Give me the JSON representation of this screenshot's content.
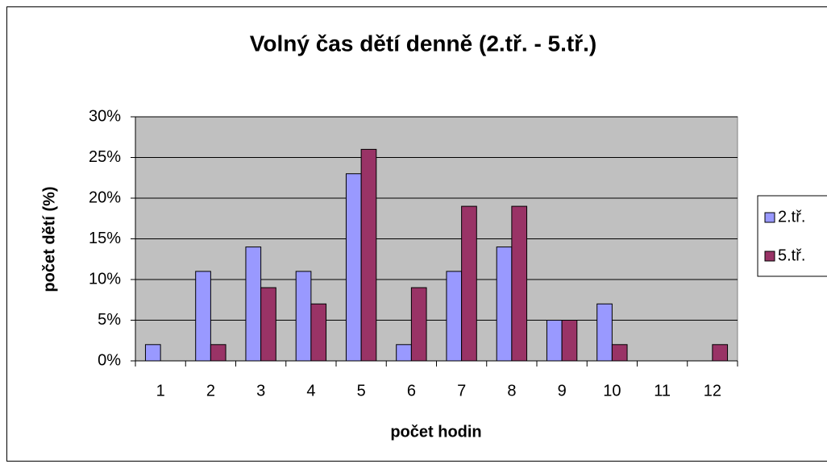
{
  "chart_data": {
    "type": "bar",
    "title": "Volný čas dětí denně (2.tř. - 5.tř.)",
    "x_label": "počet hodin",
    "y_label": "počet dětí (%)",
    "categories": [
      "1",
      "2",
      "3",
      "4",
      "5",
      "6",
      "7",
      "8",
      "9",
      "10",
      "11",
      "12"
    ],
    "series": [
      {
        "name": "2.tř.",
        "color": "#9999ff",
        "values": [
          2,
          11,
          14,
          11,
          23,
          2,
          11,
          14,
          5,
          7,
          0,
          0
        ]
      },
      {
        "name": "5.tř.",
        "color": "#993366",
        "values": [
          0,
          2,
          9,
          7,
          26,
          9,
          19,
          19,
          5,
          2,
          0,
          2
        ]
      }
    ],
    "ylim": [
      0,
      30
    ],
    "yticks": [
      {
        "value": 0,
        "label": "0%"
      },
      {
        "value": 5,
        "label": "5%"
      },
      {
        "value": 10,
        "label": "10%"
      },
      {
        "value": 15,
        "label": "15%"
      },
      {
        "value": 20,
        "label": "20%"
      },
      {
        "value": 25,
        "label": "25%"
      },
      {
        "value": 30,
        "label": "30%"
      }
    ],
    "grid": true,
    "legend": "right"
  }
}
